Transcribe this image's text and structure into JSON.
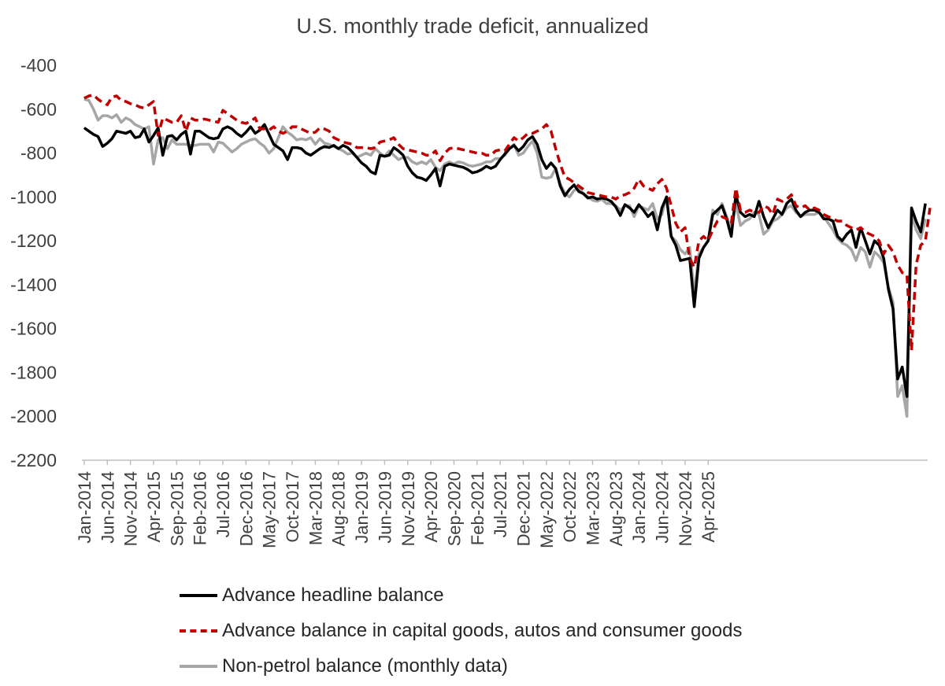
{
  "chart_data": {
    "type": "line",
    "title": "U.S. monthly trade deficit, annualized",
    "xlabel": "",
    "ylabel": "",
    "ylim": [
      -2200,
      -400
    ],
    "yticks": [
      -400,
      -600,
      -800,
      -1000,
      -1200,
      -1400,
      -1600,
      -1800,
      -2000,
      -2200
    ],
    "grid": false,
    "legend_position": "bottom",
    "x_start": "Jan-2014",
    "x_tick_labels": [
      "Jan-2014",
      "Jun-2014",
      "Nov-2014",
      "Apr-2015",
      "Sep-2015",
      "Feb-2016",
      "Jul-2016",
      "Dec-2016",
      "May-2017",
      "Oct-2017",
      "Mar-2018",
      "Aug-2018",
      "Jan-2019",
      "Jun-2019",
      "Nov-2019",
      "Apr-2020",
      "Sep-2020",
      "Feb-2021",
      "Jul-2021",
      "Dec-2021",
      "May-2022",
      "Oct-2022",
      "Mar-2023",
      "Aug-2023",
      "Jan-2024",
      "Jun-2024",
      "Nov-2024",
      "Apr-2025"
    ],
    "series": [
      {
        "name": "Advance headline balance",
        "color": "#000000",
        "style": "solid",
        "values": [
          -685,
          -700,
          -715,
          -725,
          -770,
          -755,
          -735,
          -700,
          -705,
          -710,
          -700,
          -730,
          -725,
          -690,
          -750,
          -720,
          -685,
          -810,
          -725,
          -720,
          -740,
          -715,
          -700,
          -805,
          -700,
          -700,
          -715,
          -730,
          -735,
          -730,
          -690,
          -680,
          -690,
          -710,
          -725,
          -705,
          -680,
          -710,
          -695,
          -670,
          -715,
          -760,
          -775,
          -790,
          -830,
          -775,
          -775,
          -780,
          -800,
          -810,
          -795,
          -780,
          -770,
          -775,
          -765,
          -780,
          -765,
          -775,
          -795,
          -820,
          -845,
          -860,
          -885,
          -895,
          -810,
          -815,
          -810,
          -775,
          -790,
          -810,
          -860,
          -890,
          -910,
          -915,
          -925,
          -900,
          -870,
          -950,
          -860,
          -850,
          -855,
          -860,
          -865,
          -875,
          -890,
          -885,
          -875,
          -860,
          -870,
          -860,
          -830,
          -805,
          -780,
          -765,
          -790,
          -770,
          -740,
          -725,
          -760,
          -830,
          -870,
          -845,
          -870,
          -950,
          -995,
          -965,
          -945,
          -975,
          -985,
          -1005,
          -1000,
          -1010,
          -1005,
          -1010,
          -1020,
          -1045,
          -1085,
          -1035,
          -1050,
          -1070,
          -1035,
          -1060,
          -1090,
          -1070,
          -1150,
          -1050,
          -1000,
          -1180,
          -1220,
          -1290,
          -1285,
          -1280,
          -1500,
          -1280,
          -1230,
          -1200,
          -1080,
          -1060,
          -1040,
          -1100,
          -1180,
          -990,
          -1070,
          -1090,
          -1080,
          -1090,
          -1020,
          -1090,
          -1140,
          -1100,
          -1060,
          -1080,
          -1030,
          -1010,
          -1060,
          -1090,
          -1070,
          -1060,
          -1060,
          -1070,
          -1100,
          -1100,
          -1110,
          -1180,
          -1200,
          -1170,
          -1150,
          -1230,
          -1140,
          -1200,
          -1260,
          -1200,
          -1220,
          -1280,
          -1420,
          -1510,
          -1830,
          -1775,
          -1910,
          -1050,
          -1110,
          -1160,
          -1030
        ]
      },
      {
        "name": "Advance balance in capital goods, autos and consumer goods",
        "color": "#c00000",
        "style": "dashed",
        "values": [
          -550,
          -540,
          -535,
          -555,
          -570,
          -580,
          -545,
          -540,
          -560,
          -565,
          -575,
          -580,
          -590,
          -595,
          -580,
          -565,
          -720,
          -640,
          -650,
          -660,
          -660,
          -630,
          -700,
          -640,
          -650,
          -650,
          -645,
          -650,
          -655,
          -660,
          -605,
          -620,
          -635,
          -650,
          -660,
          -665,
          -655,
          -640,
          -690,
          -690,
          -695,
          -680,
          -700,
          -710,
          -700,
          -680,
          -680,
          -690,
          -700,
          -710,
          -705,
          -685,
          -690,
          -700,
          -730,
          -740,
          -750,
          -755,
          -760,
          -775,
          -775,
          -775,
          -780,
          -775,
          -750,
          -745,
          -740,
          -730,
          -760,
          -780,
          -785,
          -790,
          -795,
          -800,
          -810,
          -810,
          -790,
          -835,
          -800,
          -780,
          -775,
          -780,
          -785,
          -790,
          -795,
          -800,
          -800,
          -810,
          -810,
          -790,
          -785,
          -790,
          -760,
          -730,
          -745,
          -730,
          -710,
          -710,
          -700,
          -690,
          -670,
          -700,
          -780,
          -850,
          -910,
          -920,
          -935,
          -950,
          -965,
          -980,
          -985,
          -990,
          -995,
          -1000,
          -1000,
          -1010,
          -995,
          -990,
          -980,
          -960,
          -920,
          -950,
          -960,
          -970,
          -940,
          -920,
          -960,
          -1040,
          -1120,
          -1160,
          -1140,
          -1280,
          -1320,
          -1200,
          -1180,
          -1200,
          -1150,
          -1110,
          -1090,
          -1100,
          -1120,
          -960,
          -1060,
          -1070,
          -1060,
          -1070,
          -1070,
          -1040,
          -1050,
          -1080,
          -1010,
          -1020,
          -1010,
          -990,
          -1040,
          -1050,
          -1040,
          -1060,
          -1050,
          -1060,
          -1080,
          -1090,
          -1100,
          -1110,
          -1110,
          -1130,
          -1140,
          -1150,
          -1140,
          -1160,
          -1170,
          -1180,
          -1200,
          -1260,
          -1220,
          -1250,
          -1310,
          -1345,
          -1355,
          -1700,
          -1310,
          -1220,
          -1200,
          -1050
        ]
      },
      {
        "name": "Non-petrol balance (monthly data)",
        "color": "#a6a6a6",
        "style": "solid",
        "values": [
          -555,
          -560,
          -600,
          -650,
          -630,
          -630,
          -640,
          -625,
          -660,
          -640,
          -650,
          -670,
          -680,
          -690,
          -680,
          -850,
          -740,
          -730,
          -780,
          -740,
          -760,
          -760,
          -760,
          -765,
          -765,
          -760,
          -760,
          -760,
          -795,
          -750,
          -755,
          -775,
          -795,
          -780,
          -760,
          -750,
          -740,
          -735,
          -755,
          -770,
          -800,
          -780,
          -730,
          -680,
          -705,
          -720,
          -740,
          -735,
          -740,
          -730,
          -760,
          -735,
          -755,
          -760,
          -770,
          -780,
          -790,
          -805,
          -800,
          -820,
          -810,
          -800,
          -810,
          -780,
          -800,
          -815,
          -790,
          -810,
          -830,
          -820,
          -820,
          -840,
          -850,
          -840,
          -850,
          -830,
          -865,
          -880,
          -850,
          -840,
          -850,
          -840,
          -845,
          -855,
          -860,
          -855,
          -850,
          -840,
          -840,
          -825,
          -825,
          -810,
          -780,
          -760,
          -810,
          -800,
          -770,
          -745,
          -800,
          -910,
          -915,
          -910,
          -870,
          -940,
          -985,
          -1000,
          -970,
          -960,
          -985,
          -1000,
          -1015,
          -1020,
          -1010,
          -1030,
          -1030,
          -1040,
          -1060,
          -1040,
          -1040,
          -1090,
          -1040,
          -1050,
          -1060,
          -1030,
          -1100,
          -1080,
          -1000,
          -1180,
          -1200,
          -1240,
          -1260,
          -1230,
          -1440,
          -1260,
          -1230,
          -1200,
          -1060,
          -1080,
          -1030,
          -1090,
          -1150,
          -1030,
          -1130,
          -1110,
          -1100,
          -1070,
          -1080,
          -1170,
          -1150,
          -1110,
          -1100,
          -1080,
          -1050,
          -1040,
          -1070,
          -1090,
          -1080,
          -1080,
          -1080,
          -1070,
          -1090,
          -1120,
          -1150,
          -1190,
          -1210,
          -1220,
          -1240,
          -1290,
          -1230,
          -1250,
          -1320,
          -1250,
          -1270,
          -1300,
          -1410,
          -1480,
          -1910,
          -1860,
          -2000,
          -1080,
          -1150,
          -1190,
          -1100
        ]
      }
    ]
  }
}
